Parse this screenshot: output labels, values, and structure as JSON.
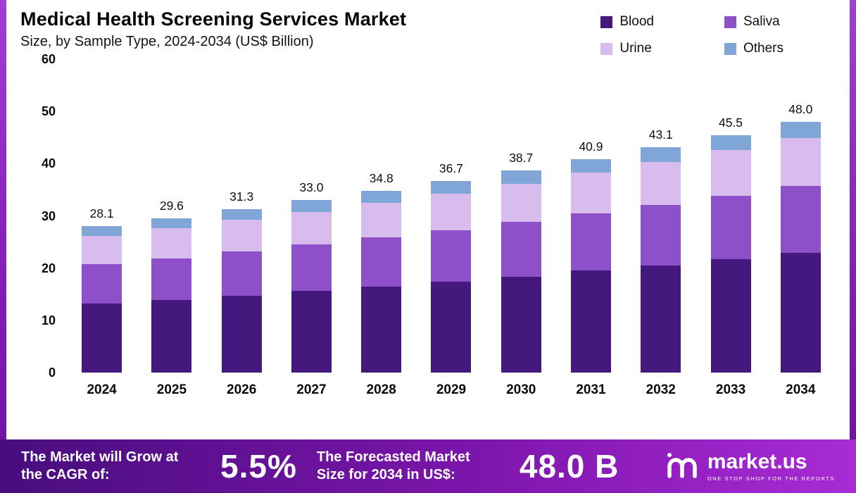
{
  "header": {
    "title": "Medical Health Screening Services Market",
    "subtitle": "Size, by Sample Type, 2024-2034 (US$ Billion)"
  },
  "chart_data": {
    "type": "bar",
    "stacked": true,
    "title": "Medical Health Screening Services Market Size, by Sample Type, 2024-2034 (US$ Billion)",
    "xlabel": "",
    "ylabel": "",
    "ylim": [
      0,
      60
    ],
    "y_ticks": [
      0,
      10,
      20,
      30,
      40,
      50,
      60
    ],
    "grid": false,
    "legend_position": "top-right",
    "categories": [
      "2024",
      "2025",
      "2026",
      "2027",
      "2028",
      "2029",
      "2030",
      "2031",
      "2032",
      "2033",
      "2034"
    ],
    "total_labels": [
      "28.1",
      "29.6",
      "31.3",
      "33.0",
      "34.8",
      "36.7",
      "38.7",
      "40.9",
      "43.1",
      "45.5",
      "48.0"
    ],
    "totals": [
      28.1,
      29.6,
      31.3,
      33.0,
      34.8,
      36.7,
      38.7,
      40.9,
      43.1,
      45.5,
      48.0
    ],
    "series": [
      {
        "name": "Blood",
        "color": "#45187d",
        "values": [
          13.2,
          13.9,
          14.7,
          15.6,
          16.5,
          17.4,
          18.4,
          19.5,
          20.5,
          21.7,
          22.9
        ]
      },
      {
        "name": "Saliva",
        "color": "#8d50c9",
        "values": [
          7.6,
          8.0,
          8.5,
          8.9,
          9.4,
          9.9,
          10.4,
          11.0,
          11.6,
          12.2,
          12.9
        ]
      },
      {
        "name": "Urine",
        "color": "#d9bcee",
        "values": [
          5.4,
          5.7,
          6.0,
          6.3,
          6.6,
          7.0,
          7.4,
          7.8,
          8.2,
          8.7,
          9.1
        ]
      },
      {
        "name": "Others",
        "color": "#7fa6d6",
        "values": [
          1.9,
          2.0,
          2.1,
          2.2,
          2.3,
          2.4,
          2.5,
          2.6,
          2.8,
          2.9,
          3.1
        ]
      }
    ]
  },
  "footer": {
    "cagr_label": "The Market will Grow at the CAGR of:",
    "cagr_value": "5.5%",
    "forecast_label": "The Forecasted Market Size for 2034 in US$:",
    "forecast_value": "48.0 B",
    "brand": "market.us",
    "brand_tagline": "ONE STOP SHOP FOR THE REPORTS"
  },
  "colors": {
    "frame": "#8a24bd",
    "footer_gradient_start": "#480d7e",
    "footer_gradient_end": "#a82bd5",
    "text": "#0a0a0a"
  }
}
